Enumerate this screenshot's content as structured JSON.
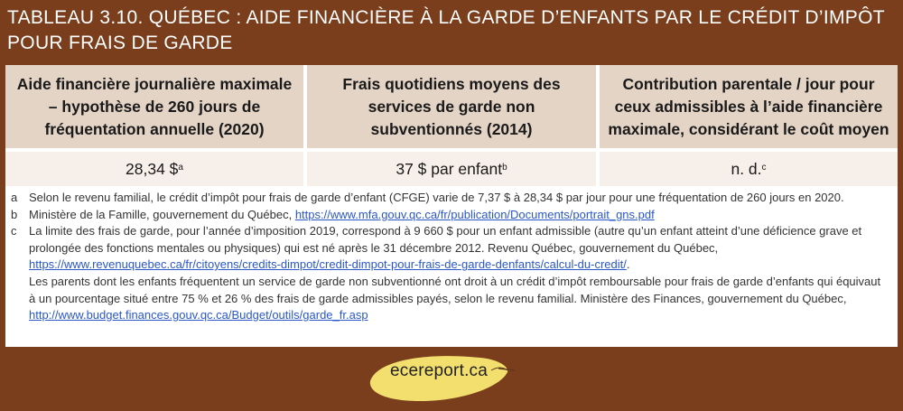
{
  "title": {
    "line1": "TABLEAU 3.10. QUÉBEC : AIDE FINANCIÈRE À LA GARDE D’ENFANTS PAR LE CRÉDIT D’IMPÔT",
    "line2": "POUR FRAIS DE GARDE"
  },
  "table": {
    "headers": [
      "Aide financière journalière maximale – hypothèse de 260 jours de fréquentation annuelle (2020)",
      "Frais quotidiens moyens des services de garde non subventionnés (2014)",
      "Contribution parentale / jour pour ceux admissibles à l’aide financière maximale, considérant le coût moyen"
    ],
    "row": [
      {
        "value": "28,34 $",
        "sup": "a"
      },
      {
        "value": "37 $ par enfant",
        "sup": "b"
      },
      {
        "value": "n. d.",
        "sup": "c"
      }
    ]
  },
  "notes": {
    "a": {
      "marker": "a",
      "text": "Selon le revenu familial, le crédit d’impôt pour frais de garde d’enfant (CFGE) varie de 7,37 $ à 28,34 $ par jour pour une fréquentation de 260 jours en 2020."
    },
    "b": {
      "marker": "b",
      "text": "Ministère de la Famille, gouvernement du Québec, ",
      "link": "https://www.mfa.gouv.qc.ca/fr/publication/Documents/portrait_gns.pdf"
    },
    "c": {
      "marker": "c",
      "text1": "La limite des frais de garde, pour l’année d’imposition 2019, correspond à 9 660 $ pour un enfant admissible (autre qu’un enfant atteint d’une déficience grave et prolongée des fonctions mentales ou physiques) qui est né après le 31 décembre 2012. Revenu Québec, gouvernement du Québec, ",
      "link1": "https://www.revenuquebec.ca/fr/citoyens/credits-dimpot/credit-dimpot-pour-frais-de-garde-denfants/calcul-du-credit/",
      "text1_end": ".",
      "text2": "Les parents dont les enfants fréquentent un service de garde non subventionné ont droit à un crédit d’impôt remboursable pour frais de garde d’enfants qui équivaut à un pourcentage situé entre 75 % et 26 % des frais de garde admissibles payés, selon le revenu familial. Ministère des Finances, gouvernement du Québec, ",
      "link2": "http://www.budget.finances.gouv.qc.ca/Budget/outils/garde_fr.asp"
    }
  },
  "logo": {
    "text": "ecereport.ca"
  },
  "colors": {
    "background": "#7a3e1c",
    "header": "#e4d4c6",
    "row": "#f7efe9",
    "leaf": "#f3df6e",
    "link": "#2a57c8"
  }
}
